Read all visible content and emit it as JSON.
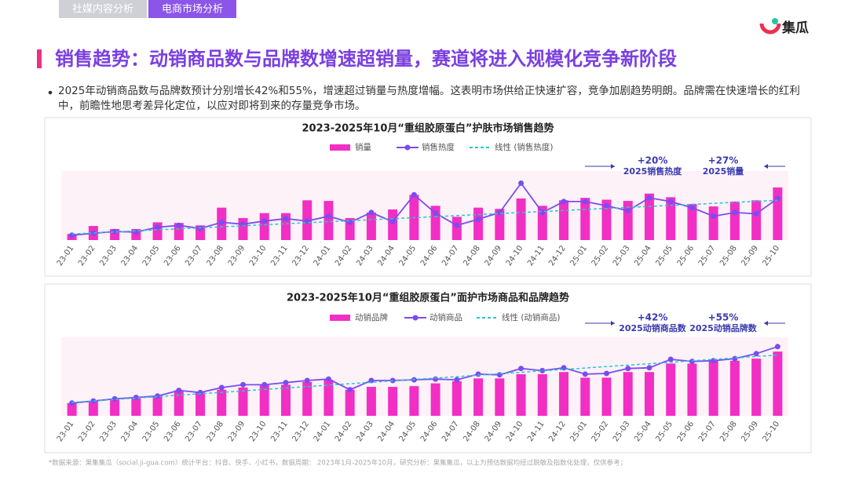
{
  "page": {
    "tabs": [
      "社媒内容分析",
      "电商市场分析"
    ],
    "logo": "集瓜",
    "title": "销售趋势：动销商品数与品牌数增速超销量，赛道将进入规模化竞争新阶段",
    "bullet": "2025年动销商品数与品牌数预计分别增长42%和55%，增速超过销量与热度增幅。这表明市场供给正快速扩容，竞争加剧趋势明朗。品牌需在快速增长的红利中，前瞻性地思考差异化定位，以应对即将到来的存量竞争市场。",
    "footnote": "*数据来源：果集集瓜（social.ji-gua.com）统计平台：抖音、快手、小红书，数据周期： 2023年1月-2025年10月，研究分析：果集集瓜，以上为预估数据均经过脱敏及指数化处理，仅供参考；"
  },
  "chart_data": [
    {
      "type": "bar",
      "title": "2023-2025年10月“重组胶原蛋白”护肤市场销售趋势",
      "categories": [
        "23-01",
        "23-02",
        "23-03",
        "23-04",
        "23-05",
        "23-06",
        "23-07",
        "23-08",
        "23-09",
        "23-10",
        "23-11",
        "23-12",
        "24-01",
        "24-02",
        "24-03",
        "24-04",
        "24-05",
        "24-06",
        "24-07",
        "24-08",
        "24-09",
        "24-10",
        "24-11",
        "24-12",
        "25-01",
        "25-02",
        "25-03",
        "25-04",
        "25-05",
        "25-06",
        "25-07",
        "25-08",
        "25-09",
        "25-10"
      ],
      "ylim": [
        0,
        100
      ],
      "series": [
        {
          "name": "销量",
          "type": "bar",
          "color": "#f22fc4",
          "values": [
            10,
            23,
            18,
            18,
            29,
            28,
            24,
            53,
            36,
            44,
            44,
            65,
            64,
            36,
            45,
            50,
            74,
            56,
            38,
            53,
            51,
            68,
            56,
            65,
            69,
            66,
            64,
            76,
            70,
            59,
            55,
            63,
            65,
            86
          ]
        },
        {
          "name": "销售热度",
          "type": "line",
          "color": "#7b4cf0",
          "values": [
            8,
            11,
            14,
            13,
            21,
            24,
            19,
            29,
            26,
            31,
            35,
            31,
            39,
            29,
            45,
            30,
            74,
            44,
            24,
            34,
            45,
            93,
            45,
            63,
            63,
            56,
            48,
            69,
            63,
            53,
            39,
            45,
            43,
            68
          ]
        },
        {
          "name": "线性 (销售热度)",
          "type": "line",
          "dash": true,
          "color": "#22c9c9",
          "values": [
            10,
            11.7,
            13.3,
            15,
            16.7,
            18.3,
            20,
            21.7,
            23.3,
            25,
            26.7,
            28.3,
            30,
            31.7,
            33.3,
            35,
            36.7,
            38.3,
            40,
            41.7,
            43.3,
            45,
            46.7,
            48.3,
            50,
            51.7,
            53.3,
            55,
            56.7,
            58.3,
            60,
            61.7,
            63.3,
            65
          ]
        }
      ],
      "annotations": [
        {
          "change": "+20%",
          "label": "2025销售热度"
        },
        {
          "change": "+27%",
          "label": "2025销量"
        }
      ]
    },
    {
      "type": "bar",
      "title": "2023-2025年10月“重组胶原蛋白”面护市场商品和品牌趋势",
      "categories": [
        "23-01",
        "23-02",
        "23-03",
        "23-04",
        "23-05",
        "23-06",
        "23-07",
        "23-08",
        "23-09",
        "23-10",
        "23-11",
        "23-12",
        "24-01",
        "24-02",
        "24-03",
        "24-04",
        "24-05",
        "24-06",
        "24-07",
        "24-08",
        "24-09",
        "24-10",
        "24-11",
        "24-12",
        "25-01",
        "25-02",
        "25-03",
        "25-04",
        "25-05",
        "25-06",
        "25-07",
        "25-08",
        "25-09",
        "25-10"
      ],
      "ylim": [
        0,
        100
      ],
      "series": [
        {
          "name": "动销品牌",
          "type": "bar",
          "color": "#f22fc4",
          "values": [
            18,
            21,
            24,
            26,
            27,
            36,
            33,
            37,
            40,
            44,
            44,
            48,
            51,
            37,
            41,
            41,
            42,
            46,
            49,
            53,
            53,
            59,
            59,
            62,
            54,
            54,
            62,
            62,
            74,
            74,
            78,
            78,
            81,
            91
          ]
        },
        {
          "name": "动销商品",
          "type": "line",
          "color": "#7b4cf0",
          "values": [
            18,
            21,
            24,
            26,
            28,
            36,
            33,
            40,
            44,
            44,
            47,
            50,
            52,
            37,
            50,
            50,
            51,
            52,
            51,
            59,
            58,
            67,
            64,
            68,
            59,
            60,
            67,
            68,
            80,
            77,
            78,
            81,
            88,
            98
          ]
        },
        {
          "name": "线性 (动销商品)",
          "type": "line",
          "dash": true,
          "color": "#22c9c9",
          "values": [
            19,
            21,
            23.1,
            25.1,
            27.1,
            29.2,
            31.2,
            33.2,
            35.2,
            37.3,
            39.3,
            41.3,
            43.4,
            45.4,
            47.4,
            49.5,
            51.5,
            53.5,
            55.5,
            57.6,
            59.6,
            61.6,
            63.7,
            65.7,
            67.7,
            69.8,
            71.8,
            73.8,
            75.8,
            77.9,
            79.9,
            81.9,
            84,
            86
          ]
        }
      ],
      "annotations": [
        {
          "change": "+42%",
          "label": "2025动销商品数"
        },
        {
          "change": "+55%",
          "label": "2025动销品牌数"
        }
      ]
    }
  ]
}
